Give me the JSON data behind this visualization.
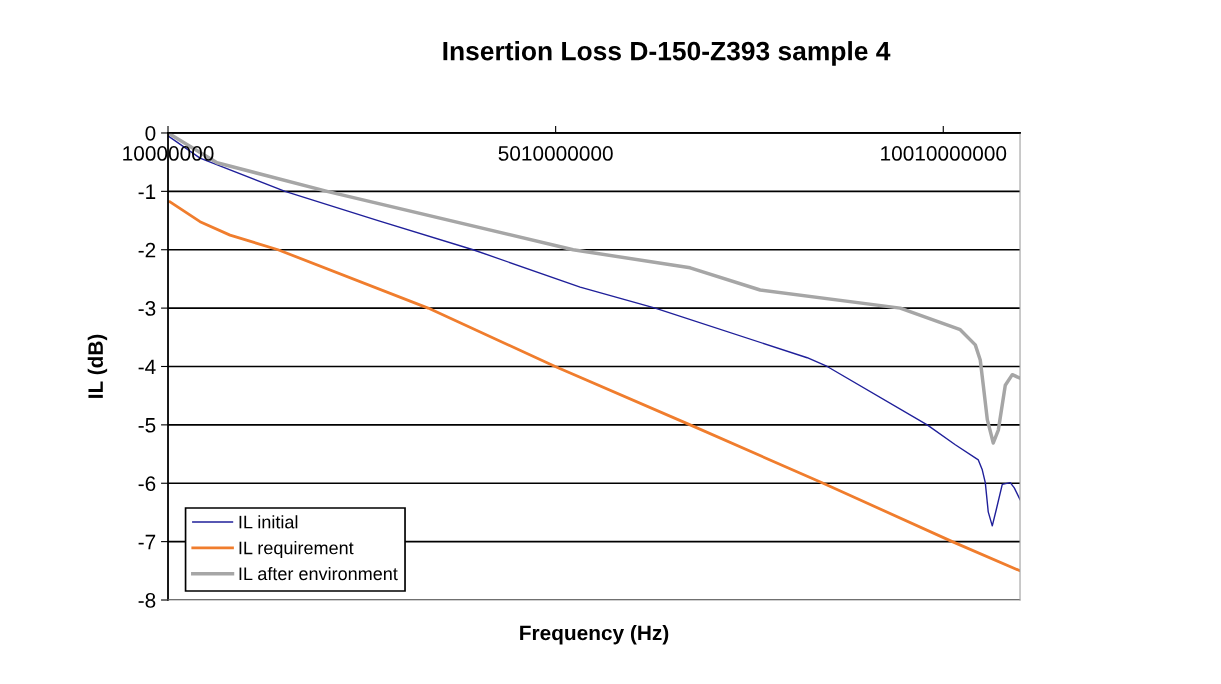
{
  "chart_data": {
    "type": "line",
    "title": "Insertion Loss D-150-Z393 sample 4",
    "xlabel": "Frequency (Hz)",
    "ylabel": "IL (dB)",
    "xlim": [
      10000000,
      11000000000
    ],
    "xticks": [
      10000000,
      5010000000,
      10010000000
    ],
    "ylim": [
      -8,
      0
    ],
    "yticks": [
      -8,
      -7,
      -6,
      -5,
      -4,
      -3,
      -2,
      -1,
      0
    ],
    "grid": "y",
    "legend": "bottom left",
    "marker": "none",
    "line_style": "solid",
    "series": [
      {
        "name": "IL initial",
        "color": "#1f1f9a",
        "x": [
          10000000,
          423000000,
          1520000000,
          2720000000,
          3945000000,
          5326000000,
          6294000000,
          8255000000,
          8513000000,
          9803000000,
          10165000000,
          10462000000,
          10513000000,
          10552000000,
          10590000000,
          10642000000,
          10694000000,
          10771000000,
          10874000000,
          10926000000,
          11000000000
        ],
        "values": [
          -0.05,
          -0.43,
          -1.0,
          -1.5,
          -2.0,
          -2.64,
          -3.0,
          -3.85,
          -4.0,
          -5.0,
          -5.34,
          -5.6,
          -5.77,
          -5.99,
          -6.49,
          -6.73,
          -6.45,
          -6.02,
          -5.99,
          -6.08,
          -6.28
        ]
      },
      {
        "name": "IL requirement",
        "color": "#f07d2d",
        "x": [
          36000000,
          423000000,
          810000000,
          1429000000,
          3365000000,
          5004000000,
          6745000000,
          8461000000,
          10126000000,
          11000000000
        ],
        "values": [
          -1.18,
          -1.52,
          -1.75,
          -2.0,
          -3.0,
          -4.0,
          -5.0,
          -6.0,
          -7.0,
          -7.5
        ]
      },
      {
        "name": "IL after environment",
        "color": "#a6a6a6",
        "x": [
          10000000,
          642000000,
          2062000000,
          5236000000,
          6745000000,
          7648000000,
          9455000000,
          10229000000,
          10423000000,
          10487000000,
          10526000000,
          10578000000,
          10655000000,
          10720000000,
          10810000000,
          10900000000,
          11000000000
        ],
        "values": [
          0.0,
          -0.51,
          -1.0,
          -2.0,
          -2.31,
          -2.69,
          -3.0,
          -3.37,
          -3.63,
          -3.89,
          -4.32,
          -4.91,
          -5.31,
          -5.09,
          -4.32,
          -4.14,
          -4.2
        ]
      }
    ]
  }
}
